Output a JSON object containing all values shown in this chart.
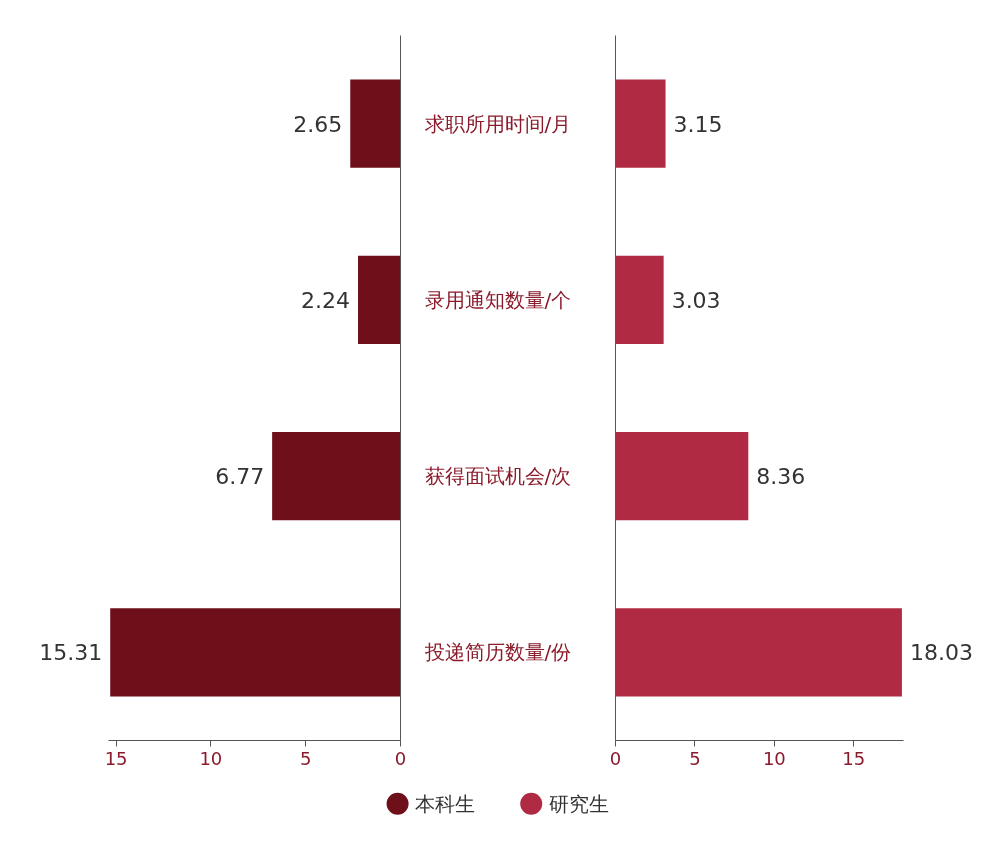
{
  "chart_data": [
    {
      "type": "bar",
      "orientation": "horizontal",
      "categories": [
        "求职所用时间/月",
        "录用通知数量/个",
        "获得面试机会/次",
        "投递简历数量/份"
      ],
      "series": [
        {
          "name": "本科生",
          "color": "#6e0f1a",
          "values": [
            2.65,
            2.24,
            6.77,
            15.31
          ]
        }
      ],
      "xlim": [
        15.4,
        0
      ],
      "xticks": [
        15,
        10,
        5,
        0
      ],
      "data_labels": true,
      "legend": "bottom",
      "grid": false
    },
    {
      "type": "bar",
      "orientation": "horizontal",
      "categories": [
        null,
        null,
        null,
        null
      ],
      "series": [
        {
          "name": "研究生",
          "color": "#b02a44",
          "values": [
            3.15,
            3.03,
            8.36,
            18.03
          ]
        }
      ],
      "xlim": [
        0,
        18.1
      ],
      "xticks": [
        0,
        5,
        10,
        15
      ],
      "data_labels": true,
      "tick_labels": "x",
      "legend": "bottom",
      "grid": false
    }
  ]
}
